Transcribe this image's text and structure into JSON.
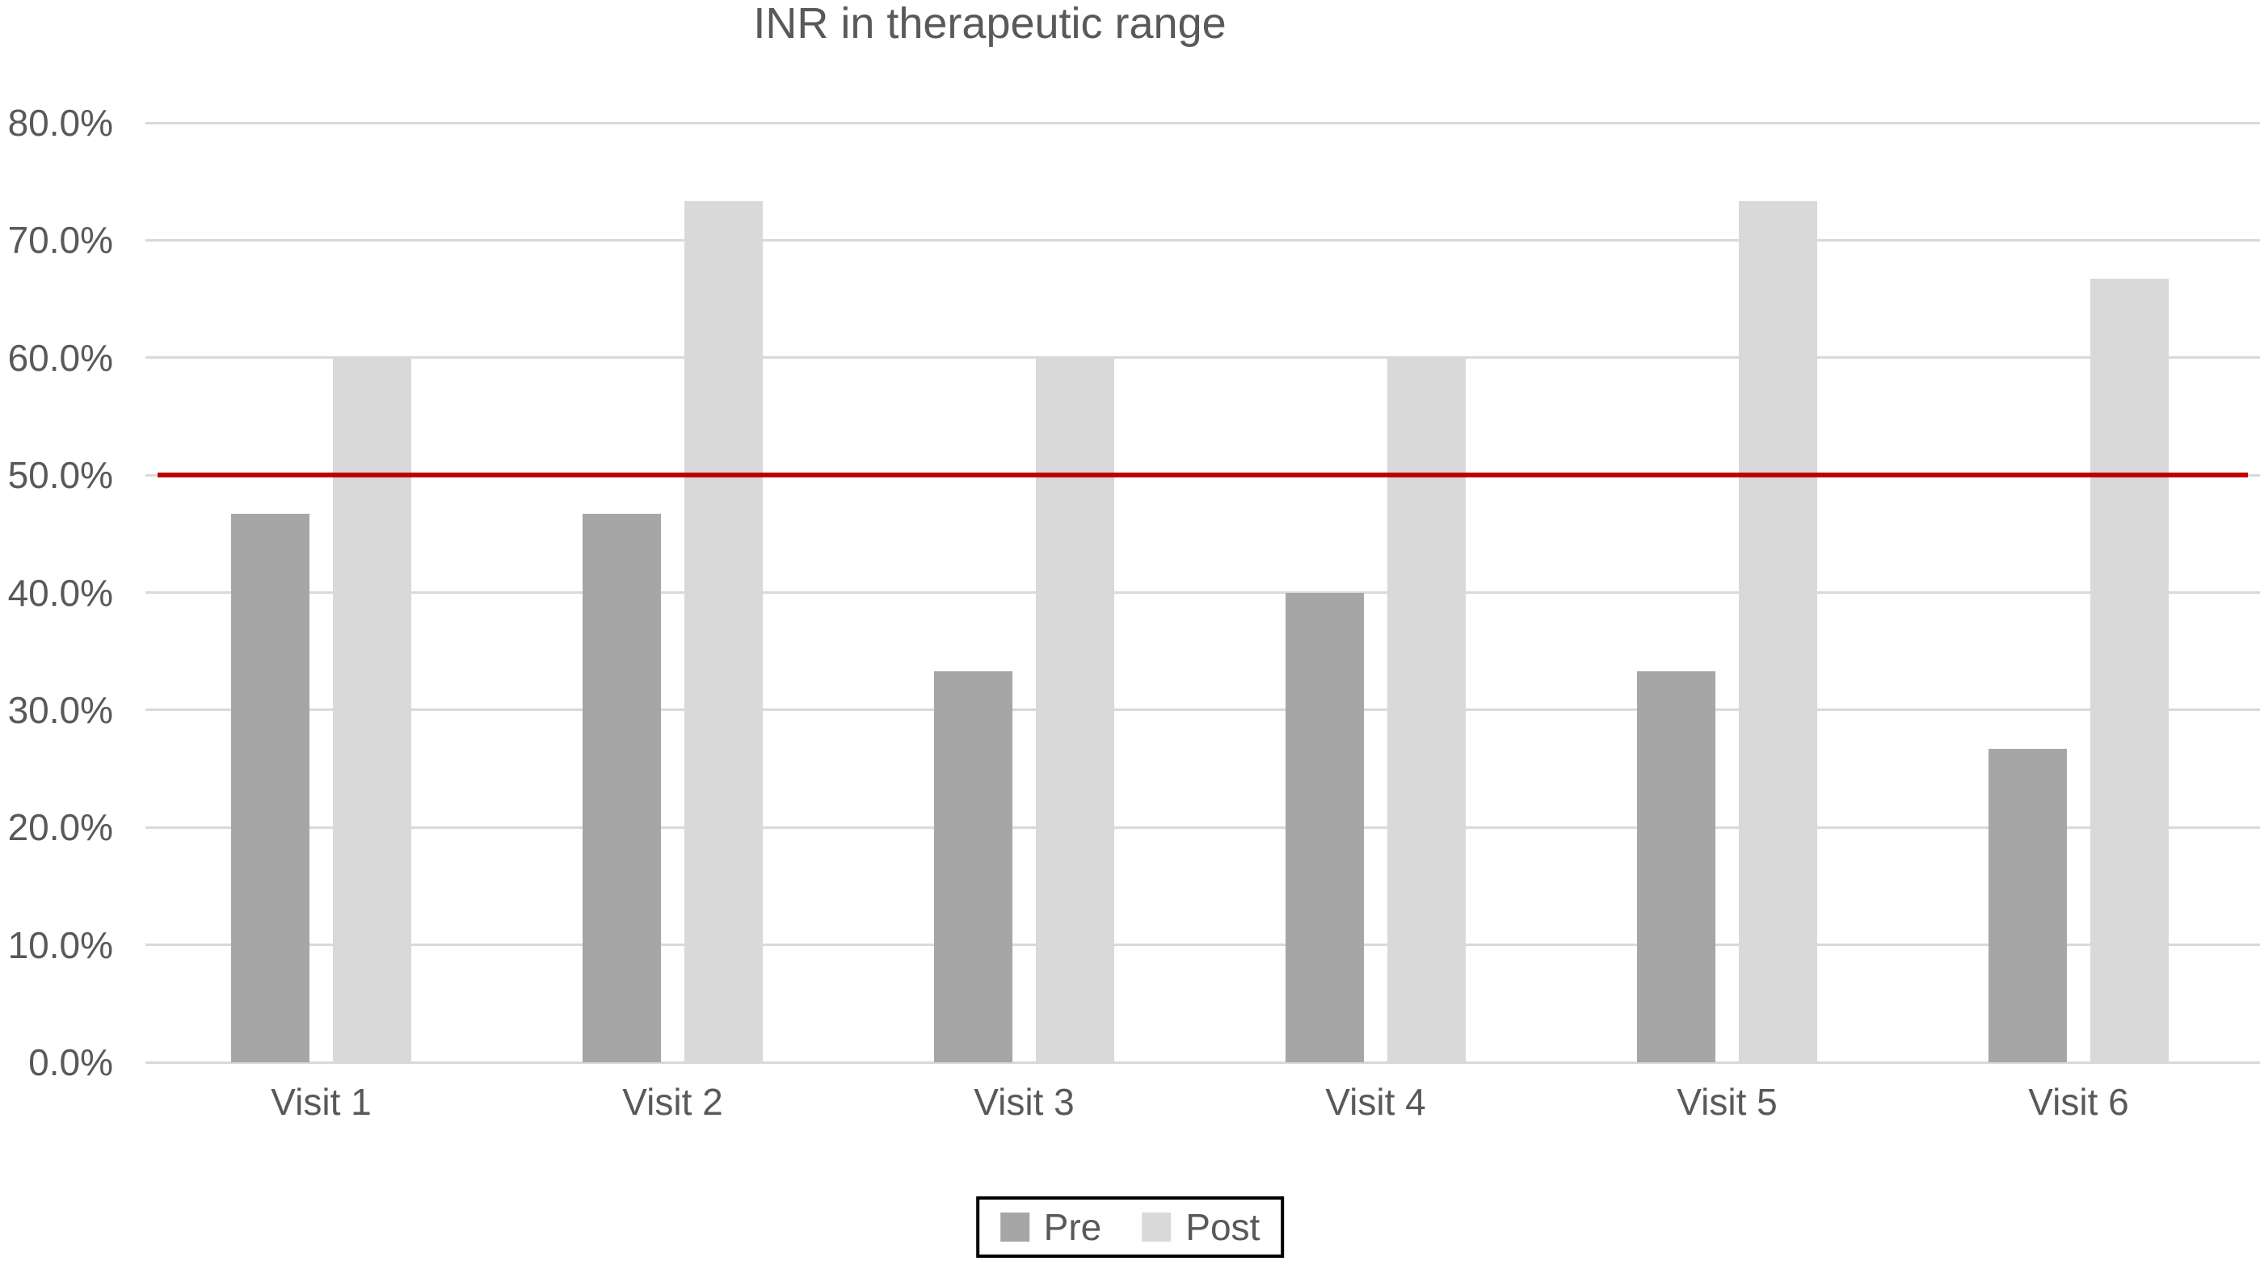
{
  "chart": {
    "title": "INR in therapeutic range"
  },
  "chart_data": {
    "type": "bar",
    "title": "INR in therapeutic range",
    "categories": [
      "Visit 1",
      "Visit 2",
      "Visit 3",
      "Visit 4",
      "Visit 5",
      "Visit 6"
    ],
    "series": [
      {
        "name": "Pre",
        "color": "#a6a6a6",
        "values": [
          46.7,
          46.7,
          33.3,
          40.0,
          33.3,
          26.7
        ]
      },
      {
        "name": "Post",
        "color": "#d9d9d9",
        "values": [
          60.0,
          73.3,
          60.0,
          60.0,
          73.3,
          66.7
        ]
      }
    ],
    "y_ticks": [
      "80.0%",
      "70.0%",
      "60.0%",
      "50.0%",
      "40.0%",
      "30.0%",
      "20.0%",
      "10.0%",
      "0.0%"
    ],
    "ylim": [
      0,
      80
    ],
    "ylabel": "",
    "xlabel": "",
    "grid": true,
    "gridline_color": "#d9d9d9",
    "text_color": "#595959",
    "reference_line": {
      "value": 50.0,
      "color": "#c00000"
    },
    "legend_position": "bottom",
    "legend_entries": [
      "Pre",
      "Post"
    ]
  }
}
